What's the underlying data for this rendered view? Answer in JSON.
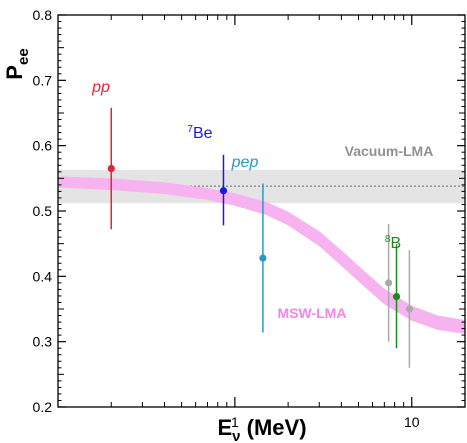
{
  "chart_data": {
    "type": "scatter",
    "x_scale": "log",
    "xlim": [
      0.1,
      20
    ],
    "ylim": [
      0.2,
      0.8
    ],
    "xlabel_main": "E",
    "xlabel_sub": "ν",
    "xlabel_unit": " (MeV)",
    "ylabel_main": "P",
    "ylabel_sub": "ee",
    "y_ticks": [
      {
        "value": 0.2,
        "label": "0.2"
      },
      {
        "value": 0.3,
        "label": "0.3"
      },
      {
        "value": 0.4,
        "label": "0.4"
      },
      {
        "value": 0.5,
        "label": "0.5"
      },
      {
        "value": 0.6,
        "label": "0.6"
      },
      {
        "value": 0.7,
        "label": "0.7"
      },
      {
        "value": 0.8,
        "label": "0.8"
      }
    ],
    "x_ticks": [
      {
        "value": 1,
        "label": "1"
      },
      {
        "value": 10,
        "label": "10"
      }
    ],
    "vacuum_lma": {
      "label": "Vacuum-LMA",
      "central": 0.538,
      "band": [
        0.512,
        0.563
      ],
      "color": "#e4e4e4",
      "line_color": "#666666",
      "label_color": "#909090"
    },
    "msw_lma": {
      "label": "MSW-LMA",
      "color": "#f7b3ef",
      "label_color": "#ee88e6",
      "points": [
        {
          "x": 0.1,
          "low": 0.536,
          "high": 0.553
        },
        {
          "x": 0.2,
          "low": 0.532,
          "high": 0.55
        },
        {
          "x": 0.4,
          "low": 0.526,
          "high": 0.544
        },
        {
          "x": 0.7,
          "low": 0.517,
          "high": 0.535
        },
        {
          "x": 1.0,
          "low": 0.508,
          "high": 0.527
        },
        {
          "x": 1.5,
          "low": 0.494,
          "high": 0.514
        },
        {
          "x": 2.0,
          "low": 0.478,
          "high": 0.499
        },
        {
          "x": 3.0,
          "low": 0.446,
          "high": 0.469
        },
        {
          "x": 4.0,
          "low": 0.416,
          "high": 0.44
        },
        {
          "x": 5.0,
          "low": 0.392,
          "high": 0.416
        },
        {
          "x": 7.0,
          "low": 0.357,
          "high": 0.381
        },
        {
          "x": 10.0,
          "low": 0.332,
          "high": 0.355
        },
        {
          "x": 14.0,
          "low": 0.318,
          "high": 0.34
        },
        {
          "x": 20.0,
          "low": 0.312,
          "high": 0.333
        }
      ]
    },
    "series": [
      {
        "name": "pp",
        "color": "#e4233a",
        "points": [
          {
            "x": 0.2,
            "y": 0.565,
            "err_low": 0.093,
            "err_high": 0.093
          }
        ]
      },
      {
        "name": "Be",
        "name_sup": "7",
        "color": "#1a1adf",
        "points": [
          {
            "x": 0.862,
            "y": 0.531,
            "err_low": 0.053,
            "err_high": 0.055
          }
        ]
      },
      {
        "name": "pep",
        "color": "#2e97c8",
        "points": [
          {
            "x": 1.44,
            "y": 0.428,
            "err_low": 0.114,
            "err_high": 0.114
          }
        ]
      },
      {
        "name": "B",
        "name_sup": "8",
        "color": "#1d8a1d",
        "points": [
          {
            "x": 8.2,
            "y": 0.369,
            "err_low": 0.079,
            "err_high": 0.08
          }
        ]
      },
      {
        "name": "",
        "color": "#aaaaaa",
        "points": [
          {
            "x": 7.4,
            "y": 0.39,
            "err_low": 0.09,
            "err_high": 0.09
          },
          {
            "x": 9.7,
            "y": 0.35,
            "err_low": 0.09,
            "err_high": 0.09
          }
        ]
      }
    ]
  }
}
